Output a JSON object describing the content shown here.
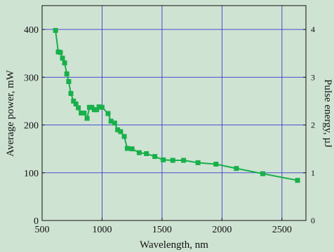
{
  "chart_data": {
    "type": "line",
    "title": "",
    "xlabel": "Wavelength, nm",
    "ylabel": "Average power, mW",
    "y2label": "Pulse energy, µJ",
    "xlim": [
      500,
      2700
    ],
    "ylim": [
      0,
      450
    ],
    "y2lim": [
      0,
      4.5
    ],
    "xticks": [
      500,
      1000,
      1500,
      2000,
      2500
    ],
    "yticks": [
      0,
      100,
      200,
      300,
      400
    ],
    "y2ticks": [
      0,
      1,
      2,
      3,
      4
    ],
    "grid": true,
    "legend": "none",
    "colors": {
      "series": "#18b04a",
      "grid": "#3a3ad0",
      "background": "#cfe3d3",
      "axis": "#111111"
    },
    "series": [
      {
        "x": [
          612,
          635,
          652,
          670,
          688,
          706,
          722,
          740,
          762,
          782,
          802,
          826,
          850,
          875,
          895,
          915,
          935,
          955,
          975,
          1000,
          1050,
          1075,
          1105,
          1130,
          1155,
          1185,
          1210,
          1250,
          1310,
          1370,
          1440,
          1510,
          1590,
          1680,
          1800,
          1950,
          2120,
          2340,
          2630
        ],
        "y": [
          398,
          353,
          352,
          340,
          330,
          307,
          291,
          266,
          250,
          244,
          236,
          225,
          225,
          214,
          237,
          237,
          232,
          232,
          238,
          237,
          224,
          208,
          204,
          190,
          186,
          176,
          151,
          150,
          142,
          140,
          134,
          127,
          126,
          126,
          121,
          118,
          109,
          98,
          84
        ]
      }
    ]
  }
}
